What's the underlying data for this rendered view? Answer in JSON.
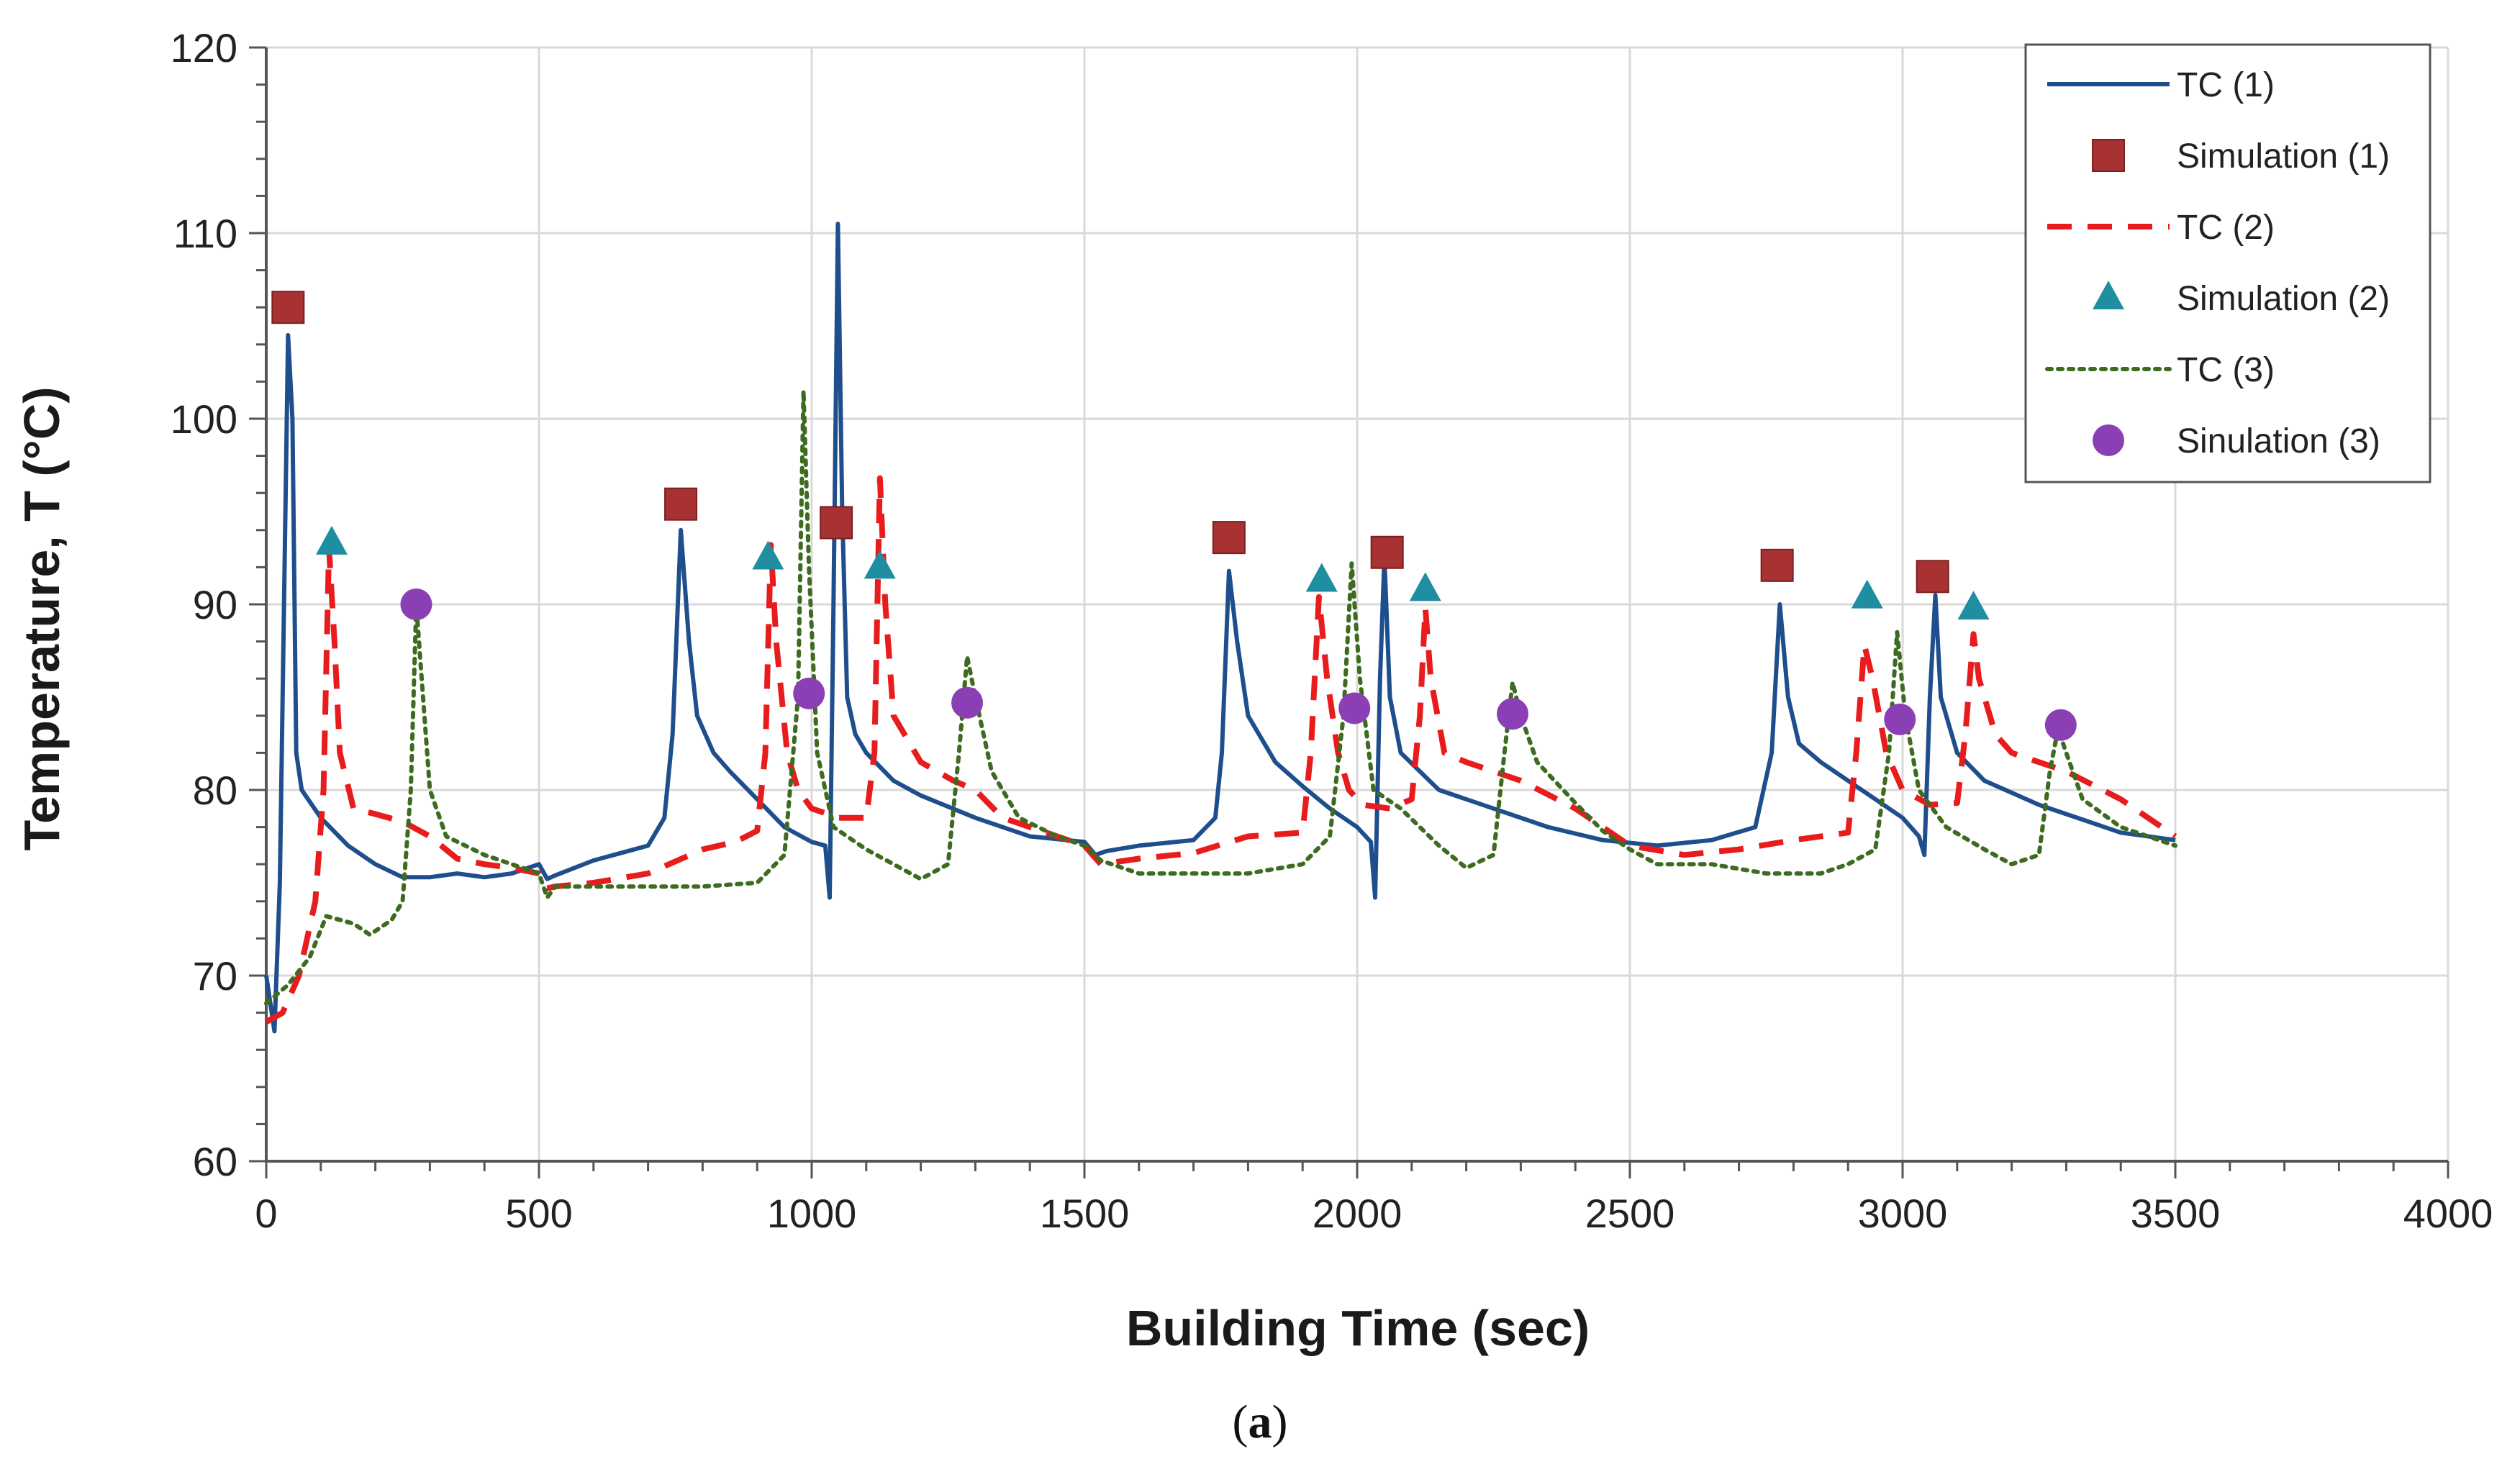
{
  "chart_data": {
    "type": "line",
    "title": "",
    "xlabel": "Building Time (sec)",
    "ylabel": "Temperature, T (°C)",
    "xlim": [
      0,
      4000
    ],
    "ylim": [
      60,
      120
    ],
    "xticks": [
      0,
      500,
      1000,
      1500,
      2000,
      2500,
      3000,
      3500,
      4000
    ],
    "yticks": [
      60,
      70,
      80,
      90,
      100,
      110,
      120
    ],
    "x_tick_labels": [
      "0",
      "500",
      "1000",
      "1500",
      "2000",
      "2500",
      "3000",
      "3500",
      "4000"
    ],
    "y_tick_labels": [
      "60",
      "70",
      "80",
      "90",
      "100",
      "110",
      "120"
    ],
    "grid": true,
    "legend_position": "top-right",
    "caption": {
      "open": "(",
      "letter": "a",
      "close": ")"
    },
    "series": [
      {
        "name": "TC (1)",
        "style": "line-solid",
        "color": "#1f4e8c",
        "points": [
          [
            0,
            70
          ],
          [
            15,
            67
          ],
          [
            25,
            75
          ],
          [
            40,
            104.5
          ],
          [
            48,
            100
          ],
          [
            55,
            82
          ],
          [
            65,
            80
          ],
          [
            100,
            78.5
          ],
          [
            150,
            77
          ],
          [
            200,
            76
          ],
          [
            250,
            75.3
          ],
          [
            300,
            75.3
          ],
          [
            350,
            75.5
          ],
          [
            400,
            75.3
          ],
          [
            450,
            75.5
          ],
          [
            500,
            76
          ],
          [
            515,
            75.2
          ],
          [
            530,
            75.4
          ],
          [
            600,
            76.2
          ],
          [
            650,
            76.6
          ],
          [
            700,
            77
          ],
          [
            730,
            78.5
          ],
          [
            745,
            83
          ],
          [
            760,
            94
          ],
          [
            775,
            88
          ],
          [
            790,
            84
          ],
          [
            820,
            82
          ],
          [
            850,
            81
          ],
          [
            900,
            79.5
          ],
          [
            950,
            78
          ],
          [
            1000,
            77.2
          ],
          [
            1025,
            77
          ],
          [
            1033,
            74.2
          ],
          [
            1040,
            90
          ],
          [
            1048,
            110.5
          ],
          [
            1056,
            95
          ],
          [
            1065,
            85
          ],
          [
            1080,
            83
          ],
          [
            1100,
            82
          ],
          [
            1150,
            80.5
          ],
          [
            1200,
            79.7
          ],
          [
            1300,
            78.5
          ],
          [
            1400,
            77.5
          ],
          [
            1500,
            77.2
          ],
          [
            1520,
            76.5
          ],
          [
            1540,
            76.7
          ],
          [
            1600,
            77
          ],
          [
            1700,
            77.3
          ],
          [
            1740,
            78.5
          ],
          [
            1752,
            82
          ],
          [
            1765,
            91.8
          ],
          [
            1780,
            88
          ],
          [
            1800,
            84
          ],
          [
            1850,
            81.5
          ],
          [
            1900,
            80.2
          ],
          [
            1950,
            79
          ],
          [
            2000,
            78
          ],
          [
            2025,
            77.2
          ],
          [
            2033,
            74.2
          ],
          [
            2042,
            86
          ],
          [
            2050,
            92.5
          ],
          [
            2060,
            85
          ],
          [
            2080,
            82
          ],
          [
            2150,
            80
          ],
          [
            2250,
            79
          ],
          [
            2350,
            78
          ],
          [
            2450,
            77.3
          ],
          [
            2550,
            77
          ],
          [
            2650,
            77.3
          ],
          [
            2730,
            78
          ],
          [
            2760,
            82
          ],
          [
            2775,
            90
          ],
          [
            2790,
            85
          ],
          [
            2810,
            82.5
          ],
          [
            2850,
            81.5
          ],
          [
            2900,
            80.5
          ],
          [
            2950,
            79.5
          ],
          [
            3000,
            78.5
          ],
          [
            3030,
            77.5
          ],
          [
            3040,
            76.5
          ],
          [
            3050,
            85
          ],
          [
            3060,
            90.5
          ],
          [
            3070,
            85
          ],
          [
            3100,
            82
          ],
          [
            3150,
            80.5
          ],
          [
            3250,
            79.2
          ],
          [
            3300,
            78.7
          ],
          [
            3400,
            77.7
          ],
          [
            3500,
            77.3
          ]
        ]
      },
      {
        "name": "Simulation (1)",
        "style": "marker-square",
        "color": "#a83232",
        "points": [
          [
            40,
            106
          ],
          [
            760,
            95.4
          ],
          [
            1045,
            94.4
          ],
          [
            1765,
            93.6
          ],
          [
            2055,
            92.8
          ],
          [
            2770,
            92.1
          ],
          [
            3055,
            91.5
          ]
        ]
      },
      {
        "name": "TC (2)",
        "style": "line-dashed",
        "color": "#e81c1c",
        "points": [
          [
            0,
            67.5
          ],
          [
            30,
            68
          ],
          [
            60,
            70
          ],
          [
            90,
            74
          ],
          [
            105,
            80
          ],
          [
            115,
            93
          ],
          [
            125,
            88
          ],
          [
            135,
            82
          ],
          [
            160,
            79
          ],
          [
            200,
            78.7
          ],
          [
            250,
            78.3
          ],
          [
            300,
            77.5
          ],
          [
            350,
            76.3
          ],
          [
            400,
            76
          ],
          [
            450,
            75.8
          ],
          [
            500,
            75.5
          ],
          [
            515,
            74.7
          ],
          [
            530,
            74.8
          ],
          [
            600,
            75
          ],
          [
            700,
            75.5
          ],
          [
            800,
            76.8
          ],
          [
            860,
            77.2
          ],
          [
            900,
            77.8
          ],
          [
            915,
            82
          ],
          [
            925,
            93.2
          ],
          [
            935,
            88
          ],
          [
            955,
            82
          ],
          [
            975,
            80
          ],
          [
            1000,
            79
          ],
          [
            1050,
            78.5
          ],
          [
            1100,
            78.5
          ],
          [
            1115,
            82
          ],
          [
            1125,
            96.8
          ],
          [
            1135,
            90
          ],
          [
            1150,
            84
          ],
          [
            1200,
            81.5
          ],
          [
            1260,
            80.5
          ],
          [
            1300,
            80
          ],
          [
            1350,
            78.5
          ],
          [
            1450,
            77.5
          ],
          [
            1500,
            77
          ],
          [
            1530,
            76
          ],
          [
            1600,
            76.3
          ],
          [
            1700,
            76.6
          ],
          [
            1800,
            77.5
          ],
          [
            1900,
            77.7
          ],
          [
            1915,
            82
          ],
          [
            1930,
            90.4
          ],
          [
            1945,
            86
          ],
          [
            1965,
            82
          ],
          [
            1985,
            80
          ],
          [
            2010,
            79.2
          ],
          [
            2060,
            79
          ],
          [
            2100,
            79.5
          ],
          [
            2115,
            84
          ],
          [
            2125,
            89.8
          ],
          [
            2135,
            86
          ],
          [
            2160,
            82
          ],
          [
            2200,
            81.5
          ],
          [
            2250,
            81
          ],
          [
            2300,
            80.5
          ],
          [
            2400,
            79
          ],
          [
            2500,
            77
          ],
          [
            2600,
            76.5
          ],
          [
            2700,
            76.8
          ],
          [
            2800,
            77.3
          ],
          [
            2900,
            77.7
          ],
          [
            2915,
            82
          ],
          [
            2930,
            87.8
          ],
          [
            2945,
            86
          ],
          [
            2970,
            82
          ],
          [
            3000,
            80
          ],
          [
            3050,
            79.2
          ],
          [
            3100,
            79.3
          ],
          [
            3115,
            83
          ],
          [
            3130,
            88.4
          ],
          [
            3140,
            86
          ],
          [
            3170,
            83
          ],
          [
            3200,
            82
          ],
          [
            3300,
            81
          ],
          [
            3400,
            79.5
          ],
          [
            3500,
            77.5
          ]
        ]
      },
      {
        "name": "Simulation (2)",
        "style": "marker-triangle",
        "color": "#1f8ea0",
        "points": [
          [
            120,
            93.3
          ],
          [
            920,
            92.5
          ],
          [
            1125,
            92
          ],
          [
            1935,
            91.3
          ],
          [
            2125,
            90.8
          ],
          [
            2935,
            90.4
          ],
          [
            3130,
            89.8
          ]
        ]
      },
      {
        "name": "TC (3)",
        "style": "line-dotted",
        "color": "#3d6b1f",
        "points": [
          [
            0,
            68.5
          ],
          [
            40,
            69.5
          ],
          [
            80,
            71
          ],
          [
            110,
            73.2
          ],
          [
            160,
            72.8
          ],
          [
            190,
            72.2
          ],
          [
            230,
            73
          ],
          [
            250,
            74
          ],
          [
            265,
            80
          ],
          [
            275,
            90
          ],
          [
            285,
            86
          ],
          [
            300,
            80
          ],
          [
            330,
            77.5
          ],
          [
            400,
            76.5
          ],
          [
            450,
            76
          ],
          [
            500,
            75.5
          ],
          [
            515,
            74.2
          ],
          [
            530,
            74.8
          ],
          [
            600,
            74.8
          ],
          [
            700,
            74.8
          ],
          [
            800,
            74.8
          ],
          [
            900,
            75
          ],
          [
            950,
            76.5
          ],
          [
            975,
            85
          ],
          [
            985,
            101.5
          ],
          [
            995,
            92
          ],
          [
            1010,
            82
          ],
          [
            1040,
            78
          ],
          [
            1100,
            76.8
          ],
          [
            1150,
            76
          ],
          [
            1200,
            75.2
          ],
          [
            1250,
            76
          ],
          [
            1270,
            82
          ],
          [
            1285,
            87.2
          ],
          [
            1300,
            85
          ],
          [
            1330,
            81
          ],
          [
            1380,
            78.5
          ],
          [
            1450,
            77.5
          ],
          [
            1500,
            77
          ],
          [
            1530,
            76.2
          ],
          [
            1600,
            75.5
          ],
          [
            1700,
            75.5
          ],
          [
            1800,
            75.5
          ],
          [
            1900,
            76
          ],
          [
            1950,
            77.5
          ],
          [
            1975,
            84
          ],
          [
            1990,
            92.2
          ],
          [
            2005,
            86
          ],
          [
            2030,
            80
          ],
          [
            2080,
            79
          ],
          [
            2150,
            77
          ],
          [
            2200,
            75.8
          ],
          [
            2250,
            76.5
          ],
          [
            2270,
            82
          ],
          [
            2285,
            85.8
          ],
          [
            2300,
            84
          ],
          [
            2330,
            81.5
          ],
          [
            2400,
            79.3
          ],
          [
            2450,
            77.8
          ],
          [
            2500,
            76.8
          ],
          [
            2550,
            76
          ],
          [
            2650,
            76
          ],
          [
            2750,
            75.5
          ],
          [
            2850,
            75.5
          ],
          [
            2900,
            76
          ],
          [
            2950,
            76.8
          ],
          [
            2975,
            82
          ],
          [
            2990,
            88.5
          ],
          [
            3005,
            84
          ],
          [
            3030,
            80
          ],
          [
            3080,
            78
          ],
          [
            3150,
            76.8
          ],
          [
            3200,
            76
          ],
          [
            3250,
            76.5
          ],
          [
            3270,
            81
          ],
          [
            3285,
            83.3
          ],
          [
            3300,
            82
          ],
          [
            3330,
            79.5
          ],
          [
            3400,
            78
          ],
          [
            3500,
            77
          ]
        ]
      },
      {
        "name": "Sinulation (3)",
        "style": "marker-circle",
        "color": "#8a3fb5",
        "points": [
          [
            275,
            90
          ],
          [
            995,
            85.2
          ],
          [
            1285,
            84.7
          ],
          [
            1995,
            84.4
          ],
          [
            2285,
            84.1
          ],
          [
            2995,
            83.8
          ],
          [
            3290,
            83.5
          ]
        ]
      }
    ]
  }
}
